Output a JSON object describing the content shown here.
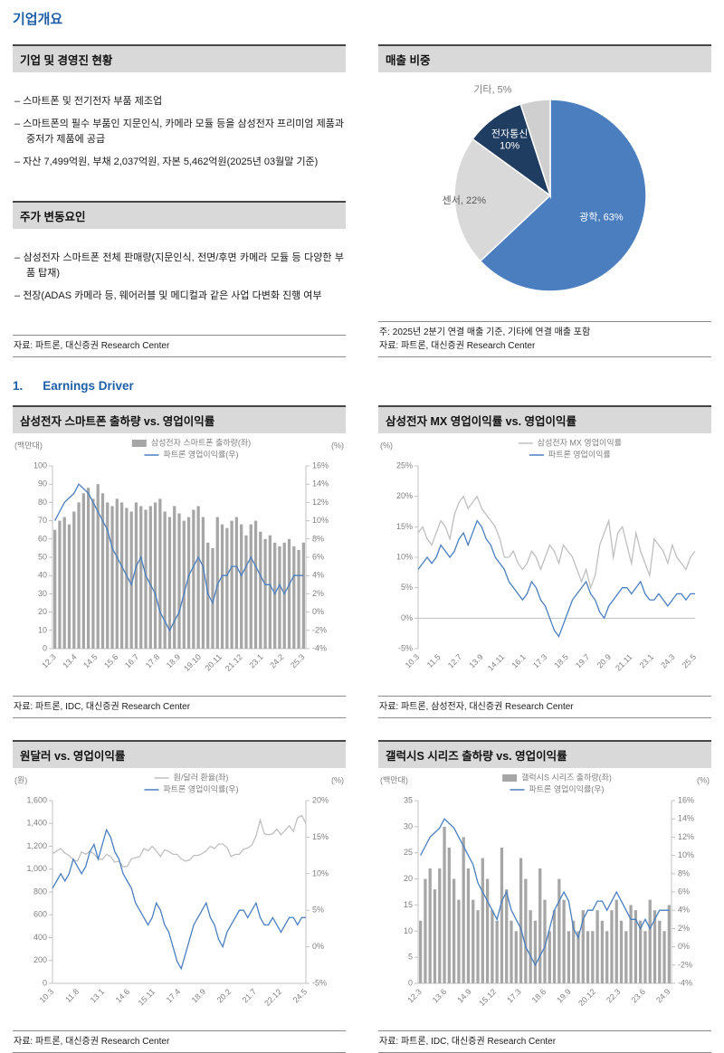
{
  "page_title": "기업개요",
  "company": {
    "header": "기업 및 경영진 현황",
    "bullets": [
      "스마트폰 및 전기전자 부품 제조업",
      "스마트폰의 필수 부품인 지문인식, 카메라 모듈 등을 삼성전자 프리미엄 제품과 중저가 제품에 공급",
      "자산 7,499억원, 부채 2,037억원, 자본 5,462억원(2025년 03월말 기준)"
    ]
  },
  "stock_drivers": {
    "header": "주가 변동요인",
    "bullets": [
      "삼성전자 스마트폰 전체 판매량(지문인식, 전면/후면 카메라 모듈 등 다양한 부품 탑재)",
      "전장(ADAS 카메라 등, 웨어러블 및 메디컬과 같은 사업 다변화 진행 여부"
    ],
    "source": "자료: 파트론, 대신증권 Research Center"
  },
  "revenue_mix": {
    "header": "매출 비중",
    "note": "주: 2025년 2분기 연결 매출 기준, 기타에 연결 매출 포함",
    "source": "자료: 파트론, 대신증권 Research Center"
  },
  "earnings": {
    "number": "1.",
    "label": "Earnings Driver"
  },
  "colors": {
    "accent_blue": "#1e5fa8",
    "chart_blue": "#4a7ebf",
    "bar_gray": "#a6a6a6",
    "line_gray": "#bfbfbf",
    "pie_navy": "#1f3c61",
    "pie_gray": "#d9d9d9",
    "header_gray": "#d9d9d9"
  },
  "chart_data": [
    {
      "type": "pie",
      "title": "매출 비중",
      "slices": [
        {
          "label": "광학",
          "value": 63,
          "color": "#4a7ebf",
          "text_color": "#ffffff",
          "label_r": 0.58
        },
        {
          "label": "센서",
          "value": 22,
          "color": "#d9d9d9",
          "text_color": "#595959",
          "label_r": 0.9
        },
        {
          "label": "전자통신",
          "value": 10,
          "color": "#1f3c61",
          "text_color": "#ffffff",
          "two_line": true,
          "label_r": 0.72
        },
        {
          "label": "기타",
          "value": 5,
          "color": "#cfcfcf",
          "text_color": "#808080",
          "outside": true
        }
      ]
    },
    {
      "type": "bar",
      "title": "삼성전자 스마트폰 출하량 vs. 영업이익률",
      "x_labels": [
        "12.3",
        "13.4",
        "14.5",
        "15.6",
        "16.7",
        "17.8",
        "18.9",
        "19.10",
        "20.11",
        "21.12",
        "23.1",
        "24.2",
        "25.3"
      ],
      "left_axis": {
        "label": "(백만대)",
        "min": 0,
        "max": 100,
        "step": 10
      },
      "right_axis": {
        "label": "(%)",
        "min": -4,
        "max": 16,
        "step": 2,
        "percent": true
      },
      "series": [
        {
          "name": "삼성전자 스마트폰 출하량(좌)",
          "kind": "bar",
          "axis": "left",
          "color": "#a6a6a6",
          "values": [
            65,
            70,
            72,
            68,
            75,
            80,
            85,
            88,
            82,
            90,
            85,
            80,
            78,
            82,
            80,
            77,
            75,
            80,
            78,
            76,
            78,
            80,
            82,
            75,
            72,
            78,
            74,
            70,
            72,
            76,
            78,
            72,
            58,
            55,
            72,
            68,
            66,
            70,
            72,
            68,
            62,
            68,
            70,
            64,
            60,
            62,
            58,
            56,
            58,
            60,
            56,
            54,
            58
          ]
        },
        {
          "name": "파트론 영업이익률(우)",
          "kind": "line",
          "axis": "right",
          "color": "#4a7ebf",
          "values": [
            10,
            11,
            12,
            12.5,
            13,
            14,
            13.5,
            13,
            12,
            11,
            10,
            9,
            7,
            6,
            5,
            4,
            3,
            5,
            6,
            4,
            3,
            2,
            0,
            -1,
            -2,
            -1,
            0,
            2,
            4,
            5,
            6,
            5,
            2,
            1,
            3,
            4,
            4,
            5,
            5,
            4,
            5,
            6,
            5,
            4,
            3,
            3,
            2,
            3,
            2,
            3,
            4,
            4,
            4
          ]
        }
      ],
      "source": "자료: 파트론, IDC, 대신증권 Research Center"
    },
    {
      "type": "line",
      "title": "삼성전자 MX 영업이익률 vs. 영업이익률",
      "x_labels": [
        "10.3",
        "11.5",
        "12.7",
        "13.9",
        "14.11",
        "16.1",
        "17.3",
        "18.5",
        "19.7",
        "20.9",
        "21.11",
        "23.1",
        "24.3",
        "25.5"
      ],
      "left_axis": {
        "label": "(%)",
        "min": -5,
        "max": 25,
        "step": 5,
        "percent": true
      },
      "series": [
        {
          "name": "삼성전자 MX 영업이익률",
          "kind": "line",
          "axis": "left",
          "color": "#bfbfbf",
          "values": [
            14,
            15,
            13,
            12,
            14,
            16,
            15,
            13,
            17,
            19,
            20,
            18,
            19,
            20,
            18,
            17,
            16,
            15,
            13,
            10,
            10,
            11,
            9,
            8,
            9,
            11,
            10,
            8,
            10,
            12,
            11,
            9,
            12,
            11,
            10,
            8,
            6,
            8,
            5,
            7,
            12,
            14,
            16,
            10,
            14,
            15,
            12,
            9,
            14,
            11,
            9,
            7,
            13,
            12,
            11,
            9,
            12,
            10,
            9,
            8,
            10,
            11
          ]
        },
        {
          "name": "파트론 영업이익률",
          "kind": "line",
          "axis": "left",
          "color": "#4a7ebf",
          "values": [
            8,
            9,
            10,
            9,
            10,
            12,
            11,
            10,
            11,
            13,
            14,
            12,
            14,
            16,
            15,
            13,
            12,
            10,
            9,
            8,
            6,
            5,
            4,
            3,
            4,
            6,
            5,
            3,
            2,
            0,
            -2,
            -3,
            -1,
            1,
            3,
            4,
            5,
            6,
            4,
            3,
            1,
            0,
            2,
            3,
            4,
            5,
            5,
            4,
            5,
            6,
            4,
            3,
            3,
            4,
            3,
            2,
            3,
            4,
            4,
            3,
            4,
            4
          ]
        }
      ],
      "source": "자료: 파트론, 삼성전자, 대신증권 Research Center"
    },
    {
      "type": "line",
      "title": "원달러 vs. 영업이익률",
      "x_labels": [
        "10.3",
        "11.8",
        "13.1",
        "14.6",
        "15.11",
        "17.4",
        "18.9",
        "20.2",
        "21.7",
        "22.12",
        "24.5"
      ],
      "left_axis": {
        "label": "(원)",
        "min": 0,
        "max": 1600,
        "step": 200,
        "thousands": true
      },
      "right_axis": {
        "label": "(%)",
        "min": -5,
        "max": 20,
        "step": 5,
        "percent": true
      },
      "series": [
        {
          "name": "원/달러 환율(좌)",
          "kind": "line",
          "axis": "left",
          "color": "#bfbfbf",
          "values": [
            1135,
            1160,
            1180,
            1140,
            1120,
            1080,
            1070,
            1150,
            1130,
            1155,
            1135,
            1090,
            1085,
            1130,
            1110,
            1060,
            1070,
            1020,
            1025,
            1090,
            1100,
            1110,
            1180,
            1160,
            1200,
            1160,
            1110,
            1170,
            1155,
            1130,
            1130,
            1090,
            1070,
            1080,
            1120,
            1120,
            1135,
            1160,
            1200,
            1180,
            1220,
            1220,
            1190,
            1110,
            1130,
            1130,
            1175,
            1185,
            1210,
            1290,
            1430,
            1310,
            1300,
            1310,
            1350,
            1300,
            1340,
            1380,
            1330,
            1450,
            1470,
            1400
          ]
        },
        {
          "name": "파트론 영업이익률(우)",
          "kind": "line",
          "axis": "right",
          "color": "#4a7ebf",
          "values": [
            8,
            9,
            10,
            9,
            10,
            12,
            11,
            10,
            11,
            13,
            14,
            12,
            14,
            16,
            15,
            13,
            12,
            10,
            9,
            8,
            6,
            5,
            4,
            3,
            4,
            6,
            5,
            3,
            2,
            0,
            -2,
            -3,
            -1,
            1,
            3,
            4,
            5,
            6,
            4,
            3,
            1,
            0,
            2,
            3,
            4,
            5,
            5,
            4,
            5,
            6,
            4,
            3,
            3,
            4,
            3,
            2,
            3,
            4,
            4,
            3,
            4,
            4
          ]
        }
      ],
      "source": "자료: 파트론, 대신증권 Research Center"
    },
    {
      "type": "bar",
      "title": "갤럭시S 시리즈 출하량 vs. 영업이익률",
      "x_labels": [
        "12.3",
        "13.6",
        "14.9",
        "15.12",
        "17.3",
        "18.6",
        "19.9",
        "20.12",
        "22.3",
        "23.6",
        "24.9"
      ],
      "left_axis": {
        "label": "(백만대)",
        "min": 0,
        "max": 35,
        "step": 5
      },
      "right_axis": {
        "label": "(%)",
        "min": -4,
        "max": 16,
        "step": 2,
        "percent": true
      },
      "series": [
        {
          "name": "갤럭시S 시리즈 출하량(좌)",
          "kind": "bar",
          "axis": "left",
          "color": "#a6a6a6",
          "values": [
            12,
            20,
            22,
            18,
            22,
            30,
            26,
            20,
            16,
            28,
            22,
            16,
            14,
            24,
            20,
            14,
            12,
            26,
            18,
            12,
            10,
            24,
            20,
            14,
            12,
            22,
            16,
            10,
            14,
            20,
            16,
            10,
            12,
            10,
            14,
            10,
            10,
            14,
            12,
            10,
            14,
            16,
            12,
            10,
            15,
            14,
            12,
            10,
            16,
            14,
            12,
            10,
            15
          ]
        },
        {
          "name": "파트론 영업이익률(우)",
          "kind": "line",
          "axis": "right",
          "color": "#4a7ebf",
          "values": [
            10,
            11,
            12,
            12.5,
            13,
            14,
            13.5,
            13,
            12,
            11,
            10,
            9,
            7,
            6,
            5,
            4,
            3,
            5,
            6,
            4,
            3,
            2,
            0,
            -1,
            -2,
            -1,
            0,
            2,
            4,
            5,
            6,
            5,
            2,
            1,
            3,
            4,
            4,
            5,
            5,
            4,
            5,
            6,
            5,
            4,
            3,
            3,
            2,
            3,
            2,
            3,
            4,
            4,
            4
          ]
        }
      ],
      "source": "자료: 파트론, IDC, 대신증권 Research Center"
    }
  ]
}
